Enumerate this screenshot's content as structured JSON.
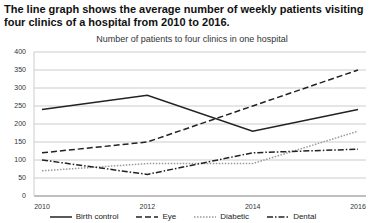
{
  "heading": "The line graph shows the average number of weekly patients visiting four clinics of a hospital from 2010 to 2016.",
  "chart_data": {
    "type": "line",
    "title": "Number of patients to four clinics in one hospital",
    "categories": [
      "2010",
      "2012",
      "2014",
      "2016"
    ],
    "series": [
      {
        "name": "Birth control",
        "color": "#222222",
        "line_style": "solid",
        "values": [
          240,
          280,
          180,
          240
        ]
      },
      {
        "name": "Eye",
        "color": "#222222",
        "line_style": "dashed",
        "values": [
          120,
          150,
          250,
          350
        ]
      },
      {
        "name": "Diabetic",
        "color": "#999999",
        "line_style": "dotted",
        "values": [
          70,
          90,
          90,
          180
        ]
      },
      {
        "name": "Dental",
        "color": "#222222",
        "line_style": "dashdot",
        "values": [
          100,
          60,
          120,
          130
        ]
      }
    ],
    "ylim": [
      0,
      400
    ],
    "yticks": [
      0,
      50,
      100,
      150,
      200,
      250,
      300,
      350,
      400
    ],
    "grid": true,
    "legend": "bottom"
  }
}
